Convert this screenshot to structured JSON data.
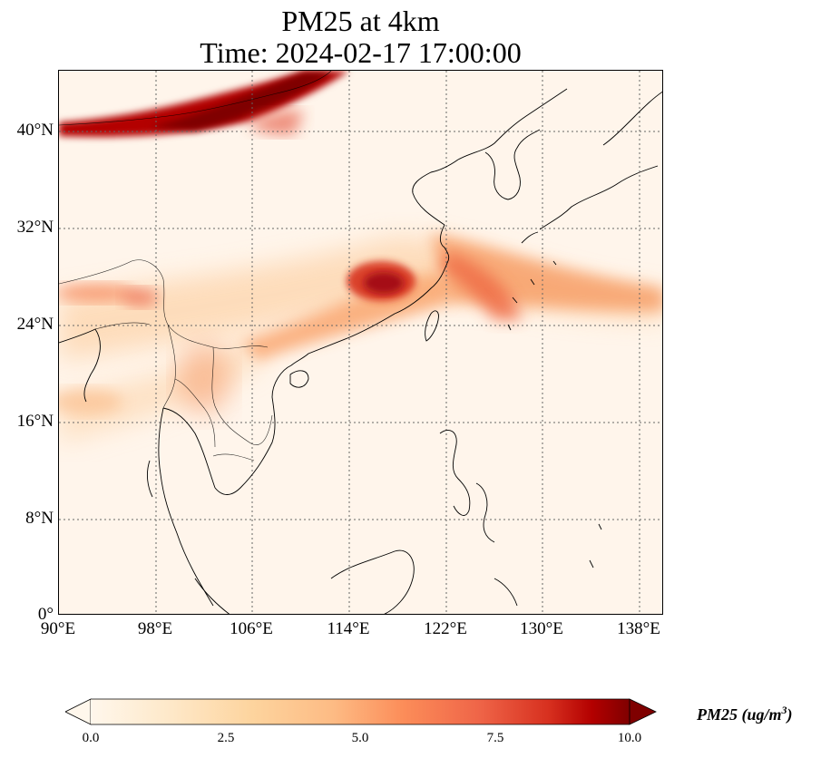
{
  "title_line1": "PM25 at 4km",
  "title_line2": "Time: 2024-02-17 17:00:00",
  "lat_labels": [
    "40°N",
    "32°N",
    "24°N",
    "16°N",
    "8°N",
    "0°"
  ],
  "lon_labels": [
    "90°E",
    "98°E",
    "106°E",
    "114°E",
    "122°E",
    "130°E",
    "138°E"
  ],
  "colorbar": {
    "label": "PM25 (ug/m",
    "label_superscript": "3",
    "label_close": ")",
    "ticks": [
      "0.0",
      "2.5",
      "5.0",
      "7.5",
      "10.0"
    ],
    "colormap": "OrRd",
    "extend": "both"
  },
  "colors": {
    "low": "#fff5eb",
    "mid": "#fc8d59",
    "high": "#7f0000"
  }
}
